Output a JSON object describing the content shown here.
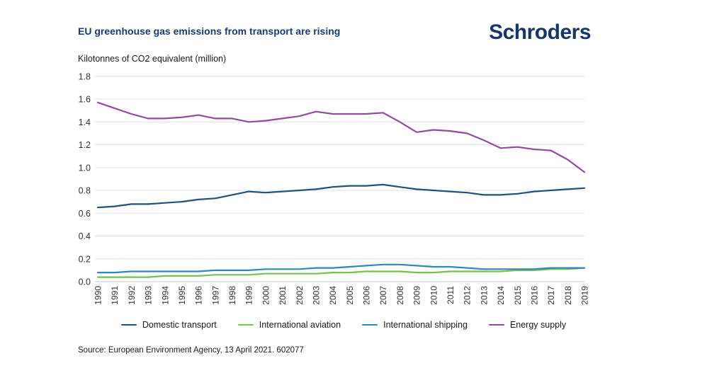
{
  "header": {
    "title": "EU greenhouse gas emissions from transport are rising",
    "logo_text": "Schroders"
  },
  "chart_data": {
    "type": "line",
    "title": "EU greenhouse gas emissions from transport are rising",
    "ylabel": "Kilotonnes of CO2 equivalent (million)",
    "xlabel": "",
    "ylim": [
      0,
      1.8
    ],
    "ytick_step": 0.2,
    "grid": "horizontal",
    "legend_position": "bottom",
    "x": [
      "1990",
      "1991",
      "1992",
      "1993",
      "1994",
      "1995",
      "1996",
      "1997",
      "1998",
      "1999",
      "2000",
      "2001",
      "2002",
      "2003",
      "2004",
      "2005",
      "2006",
      "2007",
      "2008",
      "2009",
      "2010",
      "2011",
      "2012",
      "2013",
      "2014",
      "2015",
      "2016",
      "2017",
      "2018",
      "2019"
    ],
    "series": [
      {
        "name": "Domestic transport",
        "color": "#235179",
        "values": [
          0.65,
          0.66,
          0.68,
          0.68,
          0.69,
          0.7,
          0.72,
          0.73,
          0.76,
          0.79,
          0.78,
          0.79,
          0.8,
          0.81,
          0.83,
          0.84,
          0.84,
          0.85,
          0.83,
          0.81,
          0.8,
          0.79,
          0.78,
          0.76,
          0.76,
          0.77,
          0.79,
          0.8,
          0.81,
          0.82
        ]
      },
      {
        "name": "International aviation",
        "color": "#77c24d",
        "values": [
          0.04,
          0.04,
          0.04,
          0.04,
          0.05,
          0.05,
          0.05,
          0.06,
          0.06,
          0.06,
          0.07,
          0.07,
          0.07,
          0.07,
          0.08,
          0.08,
          0.09,
          0.09,
          0.09,
          0.08,
          0.08,
          0.09,
          0.09,
          0.09,
          0.09,
          0.1,
          0.1,
          0.11,
          0.11,
          0.12
        ]
      },
      {
        "name": "International shipping",
        "color": "#2f87c0",
        "values": [
          0.08,
          0.08,
          0.09,
          0.09,
          0.09,
          0.09,
          0.09,
          0.1,
          0.1,
          0.1,
          0.11,
          0.11,
          0.11,
          0.12,
          0.12,
          0.13,
          0.14,
          0.15,
          0.15,
          0.14,
          0.13,
          0.13,
          0.12,
          0.11,
          0.11,
          0.11,
          0.11,
          0.12,
          0.12,
          0.12
        ]
      },
      {
        "name": "Energy supply",
        "color": "#8f4d9b",
        "values": [
          1.57,
          1.52,
          1.47,
          1.43,
          1.43,
          1.44,
          1.46,
          1.43,
          1.43,
          1.4,
          1.41,
          1.43,
          1.45,
          1.49,
          1.47,
          1.47,
          1.47,
          1.48,
          1.4,
          1.31,
          1.33,
          1.32,
          1.3,
          1.24,
          1.17,
          1.18,
          1.16,
          1.15,
          1.07,
          0.96
        ]
      }
    ]
  },
  "source": {
    "text": "Source: European Environment Agency, 13 April 2021. 602077"
  },
  "colors": {
    "title_navy": "#17397d",
    "logo_navy": "#16356f",
    "gridline": "#e4e4e4",
    "baseline": "#c8c8c8",
    "axis_text": "#333333"
  }
}
